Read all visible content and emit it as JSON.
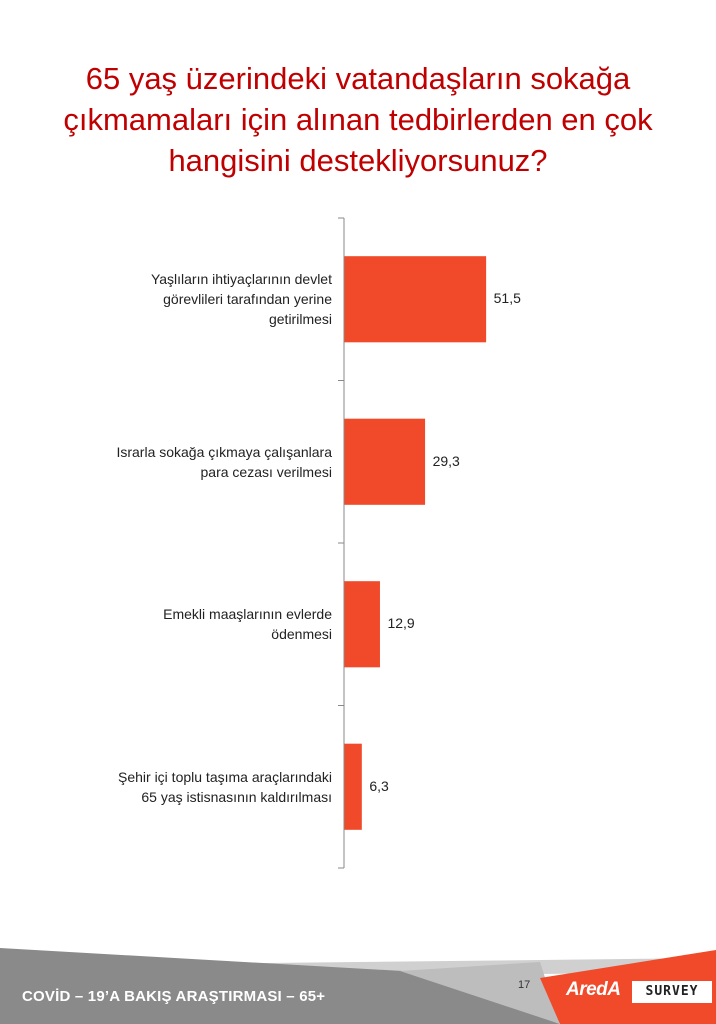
{
  "chart_data": {
    "type": "bar",
    "orientation": "horizontal",
    "title": "65 yaş üzerindeki vatandaşların sokağa çıkmamaları için alınan tedbirlerden en çok hangisini destekliyorsunuz?",
    "categories": [
      "Yaşlıların ihtiyaçlarının devlet görevlileri tarafından yerine getirilmesi",
      "Israrla sokağa çıkmaya çalışanlara para cezası verilmesi",
      "Emekli maaşlarının evlerde ödenmesi",
      "Şehir içi toplu taşıma araçlarındaki 65 yaş istisnasının kaldırılması"
    ],
    "category_lines": [
      "Yaşlıların ihtiyaçlarının devlet\ngörevlileri tarafından yerine\ngetirilmesi",
      "Israrla sokağa çıkmaya çalışanlara\npara cezası verilmesi",
      "Emekli maaşlarının evlerde\nödenmesi",
      "Şehir içi toplu taşıma araçlarındaki\n65 yaş istisnasının kaldırılması"
    ],
    "values": [
      51.5,
      29.3,
      12.9,
      6.3
    ],
    "value_labels": [
      "51,5",
      "29,3",
      "12,9",
      "6,3"
    ],
    "xlim": [
      0,
      100
    ],
    "xlabel": "",
    "ylabel": "",
    "grid": false,
    "legend": "none",
    "bar_color": "#f04a2a",
    "axis_color": "#888888"
  },
  "footer": {
    "text": "COVİD – 19’A  BAKIŞ ARAŞTIRMASI – 65+",
    "page_number": "17",
    "logo_brand": "AredA",
    "logo_survey": "SURVEY",
    "colors": {
      "grey": "#8a8a8a",
      "light_grey": "#cfcfcf",
      "orange": "#f04a2a"
    }
  },
  "colors": {
    "title": "#c00000"
  }
}
